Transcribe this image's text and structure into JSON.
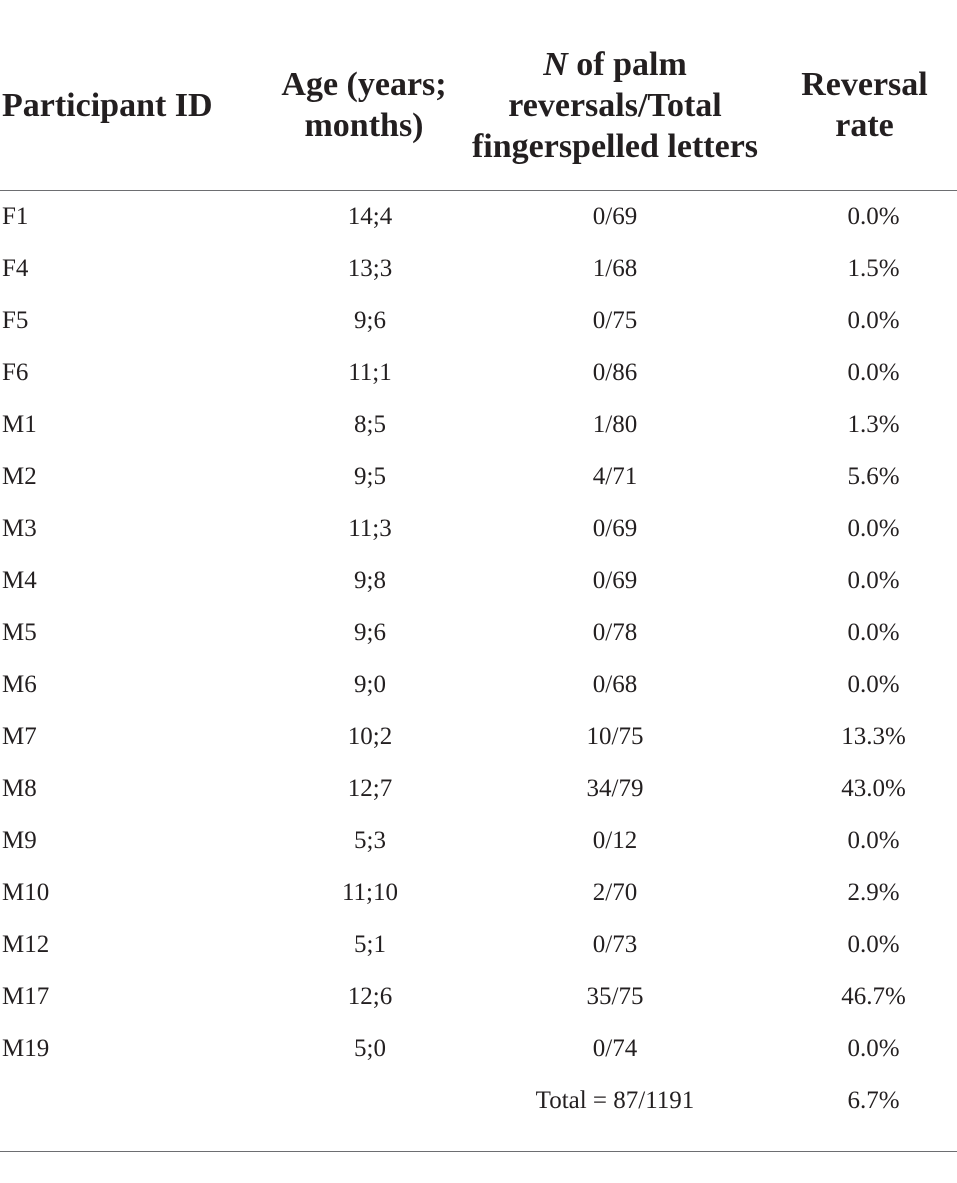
{
  "table": {
    "headers": {
      "participant_id": "Participant ID",
      "age": "Age (years; months)",
      "n_italic": "N",
      "n_rest": "of palm reversals/Total fingerspelled letters",
      "rate": "Reversal rate"
    },
    "rows": [
      {
        "id": "F1",
        "age": "14;4",
        "n": "0/69",
        "rate": "0.0%"
      },
      {
        "id": "F4",
        "age": "13;3",
        "n": "1/68",
        "rate": "1.5%"
      },
      {
        "id": "F5",
        "age": "9;6",
        "n": "0/75",
        "rate": "0.0%"
      },
      {
        "id": "F6",
        "age": "11;1",
        "n": "0/86",
        "rate": "0.0%"
      },
      {
        "id": "M1",
        "age": "8;5",
        "n": "1/80",
        "rate": "1.3%"
      },
      {
        "id": "M2",
        "age": "9;5",
        "n": "4/71",
        "rate": "5.6%"
      },
      {
        "id": "M3",
        "age": "11;3",
        "n": "0/69",
        "rate": "0.0%"
      },
      {
        "id": "M4",
        "age": "9;8",
        "n": "0/69",
        "rate": "0.0%"
      },
      {
        "id": "M5",
        "age": "9;6",
        "n": "0/78",
        "rate": "0.0%"
      },
      {
        "id": "M6",
        "age": "9;0",
        "n": "0/68",
        "rate": "0.0%"
      },
      {
        "id": "M7",
        "age": "10;2",
        "n": "10/75",
        "rate": "13.3%"
      },
      {
        "id": "M8",
        "age": "12;7",
        "n": "34/79",
        "rate": "43.0%"
      },
      {
        "id": "M9",
        "age": "5;3",
        "n": "0/12",
        "rate": "0.0%"
      },
      {
        "id": "M10",
        "age": "11;10",
        "n": "2/70",
        "rate": "2.9%"
      },
      {
        "id": "M12",
        "age": "5;1",
        "n": "0/73",
        "rate": "0.0%"
      },
      {
        "id": "M17",
        "age": "12;6",
        "n": "35/75",
        "rate": "46.7%"
      },
      {
        "id": "M19",
        "age": "5;0",
        "n": "0/74",
        "rate": "0.0%"
      },
      {
        "id": "",
        "age": "",
        "n": "Total = 87/1191",
        "rate": "6.7%"
      }
    ]
  }
}
